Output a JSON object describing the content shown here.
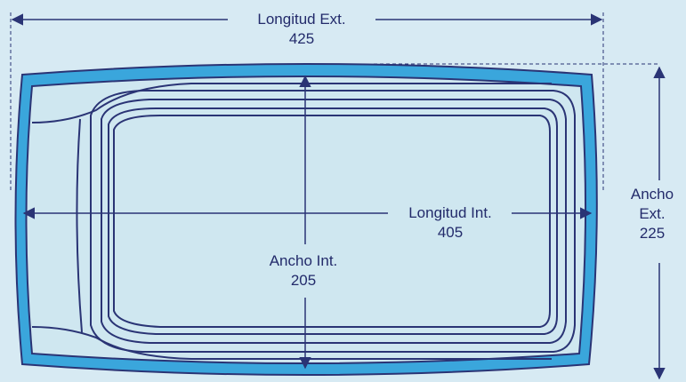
{
  "dimensions": {
    "exterior_length": {
      "label": "Longitud Ext.",
      "value": "425"
    },
    "exterior_width": {
      "label_line1": "Ancho",
      "label_line2": "Ext.",
      "value": "225"
    },
    "interior_length": {
      "label": "Longitud Int.",
      "value": "405"
    },
    "interior_width": {
      "label": "Ancho Int.",
      "value": "205"
    }
  },
  "colors": {
    "background": "#d7eaf3",
    "pool_rim": "#3aa6dc",
    "pool_fill": "#cfe7f0",
    "line": "#2a3475"
  }
}
